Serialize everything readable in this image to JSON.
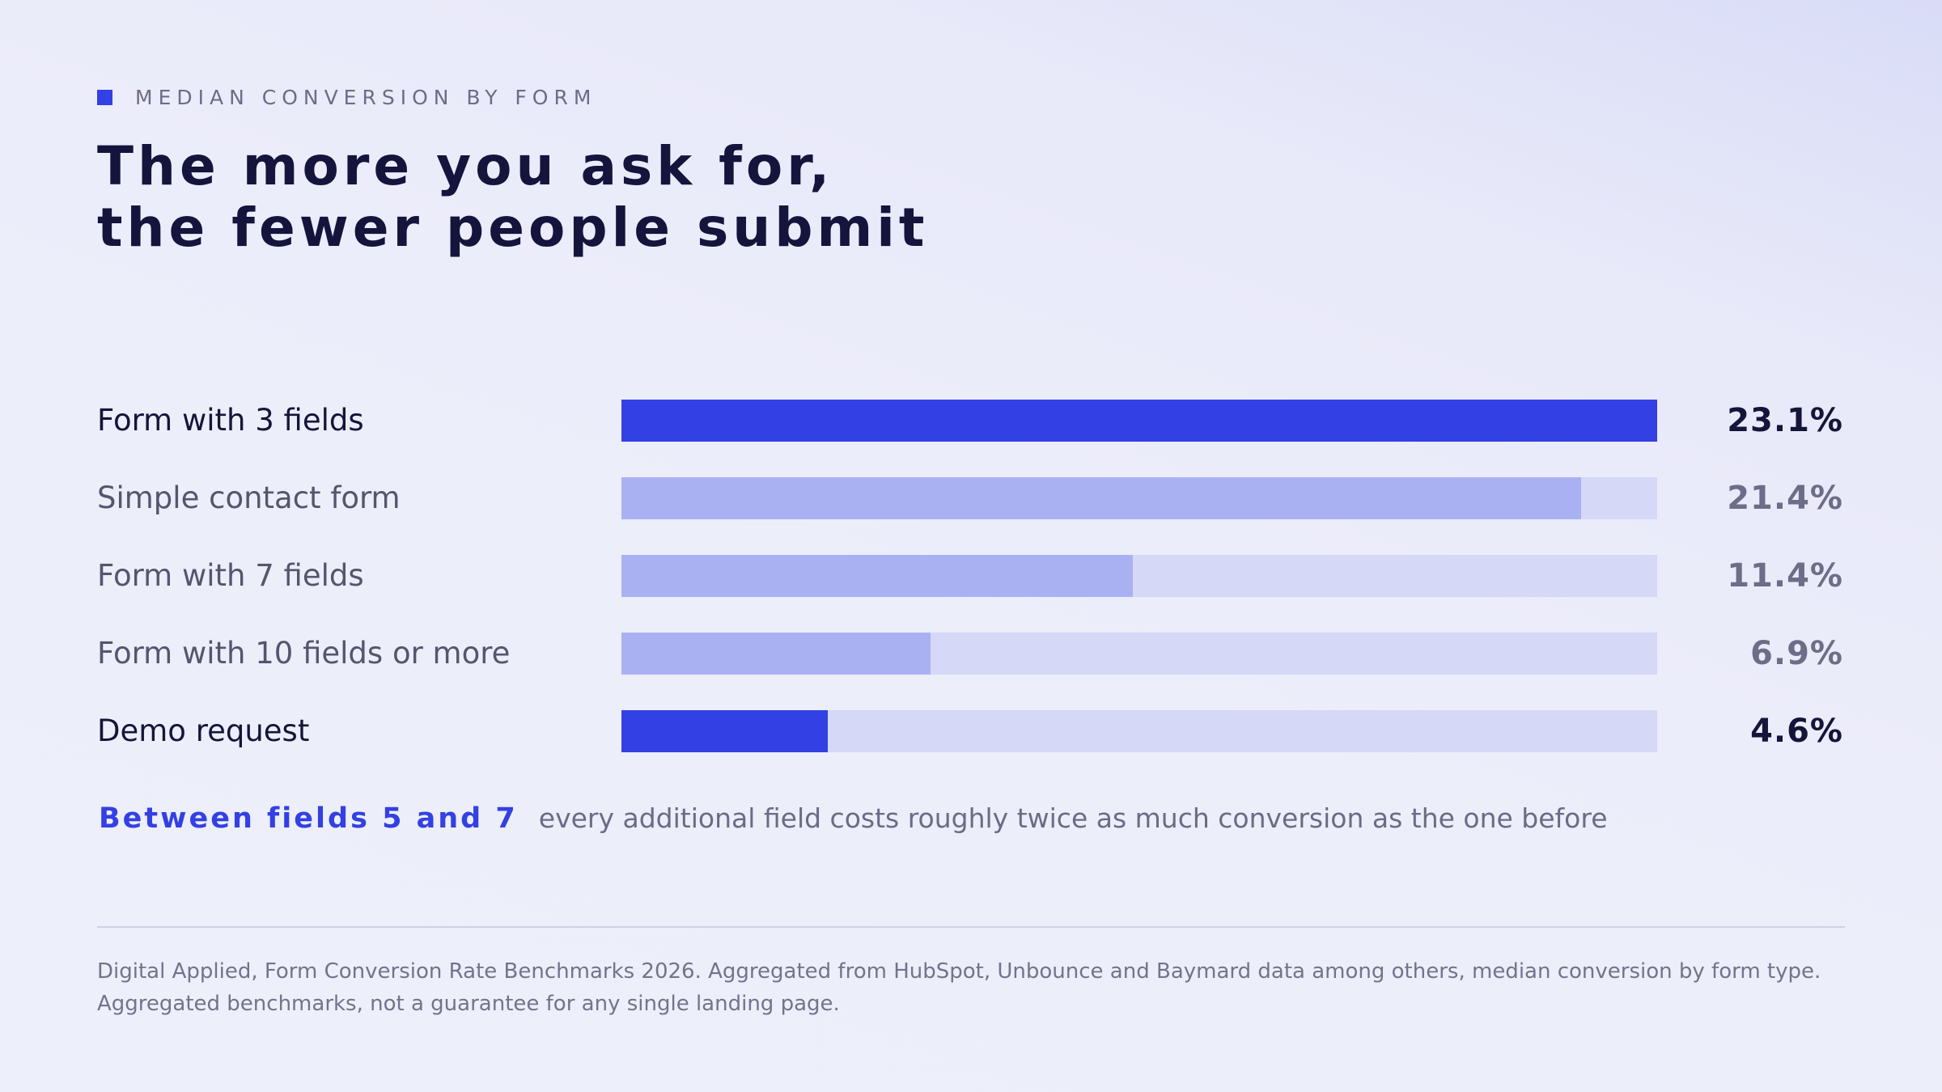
{
  "eyebrow": "MEDIAN CONVERSION BY FORM",
  "title_lines": [
    "The more you ask for,",
    "the fewer people submit"
  ],
  "colors": {
    "accent": "#3340e3",
    "bar_muted": "#aab1f2",
    "track": "#d5d8f6",
    "text_dark": "#14143c",
    "text_muted": "#6c6c8a"
  },
  "chart_data": {
    "type": "bar",
    "orientation": "horizontal",
    "unit": "%",
    "xlim": [
      0,
      23.1
    ],
    "categories": [
      "Form with 3 fields",
      "Simple contact form",
      "Form with 7 fields",
      "Form with 10 fields or more",
      "Demo request"
    ],
    "values": [
      23.1,
      21.4,
      11.4,
      6.9,
      4.6
    ],
    "value_labels": [
      "23.1%",
      "21.4%",
      "11.4%",
      "6.9%",
      "4.6%"
    ],
    "highlighted": [
      true,
      false,
      false,
      false,
      true
    ]
  },
  "insight": {
    "highlight": "Between fields 5 and 7",
    "text": "every additional field costs roughly twice as much conversion as the one before"
  },
  "source_lines": [
    "Digital Applied, Form Conversion Rate Benchmarks 2026. Aggregated from HubSpot, Unbounce and Baymard data among others, median conversion by form type.",
    "Aggregated benchmarks, not a guarantee for any single landing page."
  ]
}
